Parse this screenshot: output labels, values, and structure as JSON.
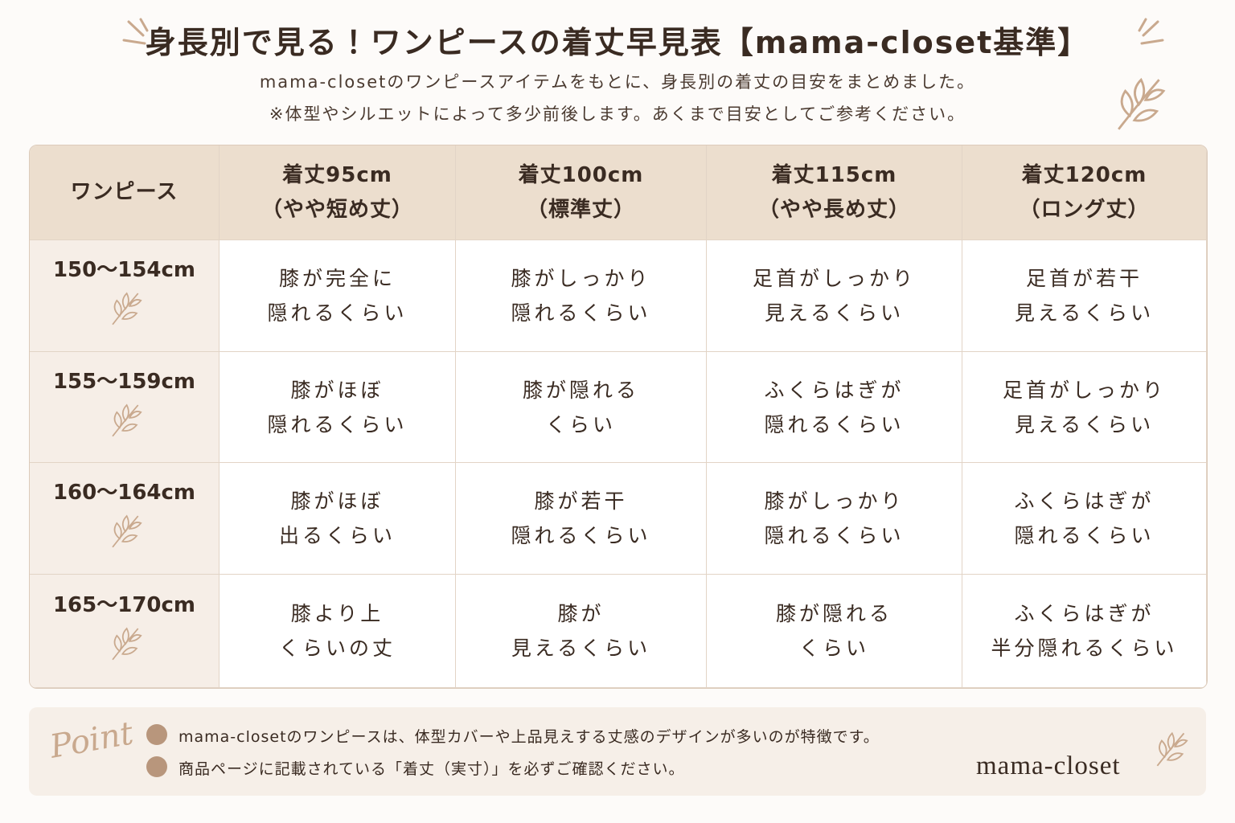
{
  "header": {
    "title": "身長別で見る！ワンピースの着丈早見表【mama-closet基準】",
    "subtitle": [
      "mama-closetのワンピースアイテムをもとに、身長別の着丈の目安をまとめました。",
      "※体型やシルエットによって多少前後します。あくまで目安としてご参考ください。"
    ]
  },
  "table": {
    "corner": "ワンピース",
    "columns": [
      [
        "着丈95cm",
        "（やや短め丈）"
      ],
      [
        "着丈100cm",
        "（標準丈）"
      ],
      [
        "着丈115cm",
        "（やや長め丈）"
      ],
      [
        "着丈120cm",
        "（ロング丈）"
      ]
    ],
    "rows": [
      {
        "label": "150～154cm",
        "cells": [
          [
            "膝が完全に",
            "隠れるくらい"
          ],
          [
            "膝がしっかり",
            "隠れるくらい"
          ],
          [
            "足首がしっかり",
            "見えるくらい"
          ],
          [
            "足首が若干",
            "見えるくらい"
          ]
        ]
      },
      {
        "label": "155～159cm",
        "cells": [
          [
            "膝がほぼ",
            "隠れるくらい"
          ],
          [
            "膝が隠れる",
            "くらい"
          ],
          [
            "ふくらはぎが",
            "隠れるくらい"
          ],
          [
            "足首がしっかり",
            "見えるくらい"
          ]
        ]
      },
      {
        "label": "160～164cm",
        "cells": [
          [
            "膝がほぼ",
            "出るくらい"
          ],
          [
            "膝が若干",
            "隠れるくらい"
          ],
          [
            "膝がしっかり",
            "隠れるくらい"
          ],
          [
            "ふくらはぎが",
            "隠れるくらい"
          ]
        ]
      },
      {
        "label": "165～170cm",
        "cells": [
          [
            "膝より上",
            "くらいの丈"
          ],
          [
            "膝が",
            "見えるくらい"
          ],
          [
            "膝が隠れる",
            "くらい"
          ],
          [
            "ふくらはぎが",
            "半分隠れるくらい"
          ]
        ]
      }
    ]
  },
  "footer": {
    "point": "Point",
    "notes": [
      "mama-closetのワンピースは、体型カバーや上品見えする丈感のデザインが多いのが特徴です。",
      "商品ページに記載されている「着丈（実寸）」を必ずご確認ください。"
    ],
    "brand": "mama-closet"
  }
}
